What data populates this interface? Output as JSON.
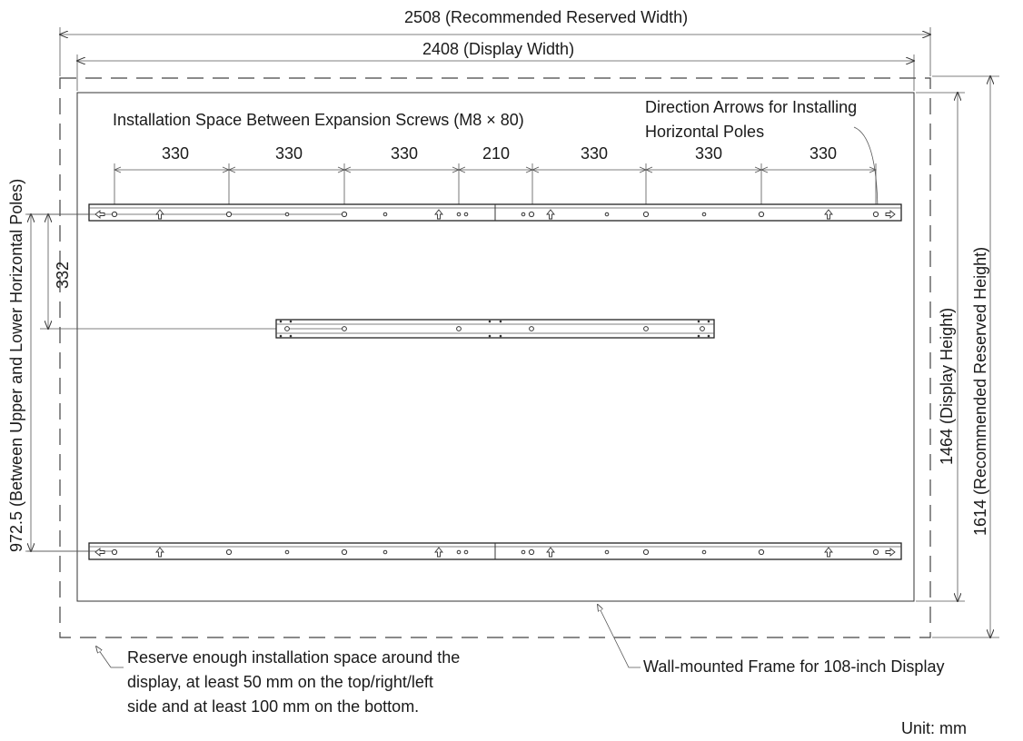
{
  "labels": {
    "reserved_width": "2508 (Recommended Reserved Width)",
    "display_width": "2408 (Display Width)",
    "installation_space": "Installation Space Between Expansion Screws (M8 × 80)",
    "direction_arrows_line1": "Direction Arrows for Installing",
    "direction_arrows_line2": "Horizontal Poles",
    "spacing_values": [
      "330",
      "330",
      "330",
      "210",
      "330",
      "330",
      "330"
    ],
    "between_poles": "972.5 (Between Upper and Lower Horizontal Poles)",
    "middle_offset": "332",
    "display_height": "1464 (Display Height)",
    "reserved_height": "1614 (Recommended Reserved Height)",
    "reserve_note_line1": "Reserve enough installation space around the",
    "reserve_note_line2": "display, at least 50 mm on the top/right/left",
    "reserve_note_line3": "side and at least 100 mm on the bottom.",
    "frame_label": "Wall-mounted Frame for 108-inch Display",
    "unit": "Unit: mm"
  },
  "colors": {
    "line": "#333333",
    "text": "#1a1a1a",
    "background": "#ffffff"
  }
}
